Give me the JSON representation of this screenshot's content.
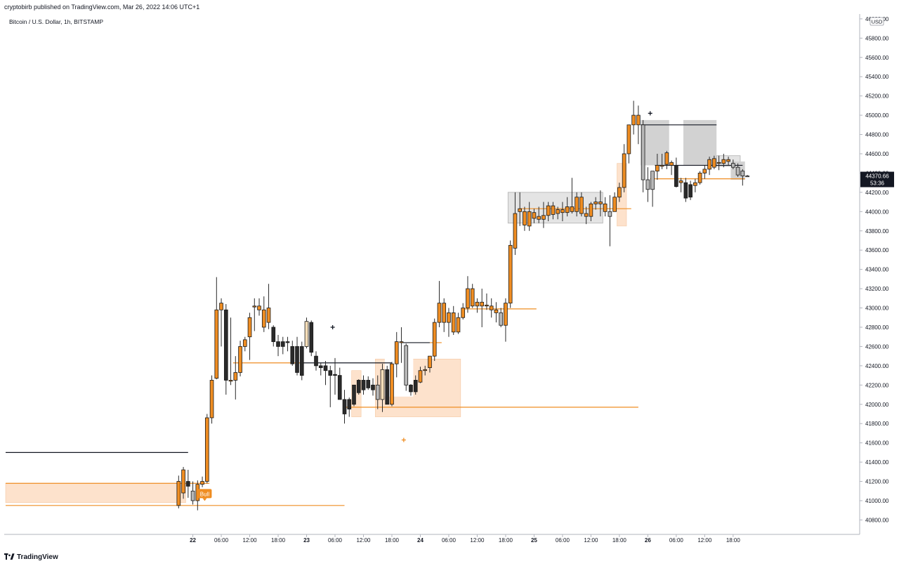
{
  "publish_line": "cryptobirb published on TradingView.com, Mar 26, 2022 14:06 UTC+1",
  "symbol_line": "Bitcoin / U.S. Dollar, 1h, BITSTAMP",
  "footer": {
    "brand": "TradingView",
    "logo_icon": "tradingview-logo-icon"
  },
  "colors": {
    "bull": "#ef8d22",
    "bear": "#2a2a2a",
    "neutral_bull": "#f5deb9",
    "neutral_bear": "#b8b8b8",
    "zone_orange": "#fde2cc",
    "zone_gray": "#d2d2d2",
    "level_orange": "#ef8d22",
    "level_black": "#131722",
    "axis_text": "#131722",
    "price_label_bg": "#131722"
  },
  "chart_data": {
    "type": "candlestick",
    "title": "",
    "xlabel": "",
    "ylabel": "",
    "currency_label": "USD",
    "ylim": [
      40650,
      46050
    ],
    "xlim": [
      -39.8,
      140.7
    ],
    "last_price_label": "44370.66",
    "countdown_label": "53:36",
    "y_ticks": [
      40800,
      41000,
      41200,
      41400,
      41600,
      41800,
      42000,
      42200,
      42400,
      42600,
      42800,
      43000,
      43200,
      43400,
      43600,
      43800,
      44000,
      44200,
      44400,
      44600,
      44800,
      45000,
      45200,
      45400,
      45600,
      45800,
      46000
    ],
    "y_tick_labels": [
      "40800.00",
      "41000.00",
      "41200.00",
      "41400.00",
      "41600.00",
      "41800.00",
      "42000.00",
      "42200.00",
      "42400.00",
      "42600.00",
      "42800.00",
      "43000.00",
      "43200.00",
      "43400.00",
      "43600.00",
      "43800.00",
      "44000.00",
      "44200.00",
      "44400.00",
      "44600.00",
      "44800.00",
      "45000.00",
      "45200.00",
      "45400.00",
      "45600.00",
      "45800.00",
      "46000.00"
    ],
    "x_axis_note": "x = hours since 2022-03-22 00:00",
    "x_ticks": [
      {
        "x": 0,
        "label": "22"
      },
      {
        "x": 6,
        "label": "06:00"
      },
      {
        "x": 12,
        "label": "12:00"
      },
      {
        "x": 18,
        "label": "18:00"
      },
      {
        "x": 24,
        "label": "23"
      },
      {
        "x": 30,
        "label": "06:00"
      },
      {
        "x": 36,
        "label": "12:00"
      },
      {
        "x": 42,
        "label": "18:00"
      },
      {
        "x": 48,
        "label": "24"
      },
      {
        "x": 54,
        "label": "06:00"
      },
      {
        "x": 60,
        "label": "12:00"
      },
      {
        "x": 66,
        "label": "18:00"
      },
      {
        "x": 72,
        "label": "25"
      },
      {
        "x": 78,
        "label": "06:00"
      },
      {
        "x": 84,
        "label": "12:00"
      },
      {
        "x": 90,
        "label": "18:00"
      },
      {
        "x": 96,
        "label": "26"
      },
      {
        "x": 102,
        "label": "06:00"
      },
      {
        "x": 108,
        "label": "12:00"
      },
      {
        "x": 114,
        "label": "18:00"
      }
    ],
    "candles_format": [
      "x",
      "open",
      "high",
      "low",
      "close",
      "style"
    ],
    "candles": [
      [
        -3,
        41200,
        41260,
        40920,
        40950,
        "bull"
      ],
      [
        -2,
        41080,
        41350,
        41020,
        41320,
        "bull"
      ],
      [
        -1,
        41150,
        41320,
        41030,
        41200,
        "bear"
      ],
      [
        0,
        41100,
        41200,
        40960,
        41000,
        "neutral_bear"
      ],
      [
        1,
        41000,
        41210,
        40900,
        41170,
        "bull"
      ],
      [
        2,
        41170,
        41250,
        41140,
        41200,
        "bull"
      ],
      [
        3,
        41200,
        41900,
        41180,
        41860,
        "bull"
      ],
      [
        4,
        41860,
        42300,
        41800,
        42250,
        "bull"
      ],
      [
        5,
        42270,
        43320,
        42260,
        42980,
        "bull"
      ],
      [
        6,
        42980,
        43100,
        42600,
        43050,
        "bull"
      ],
      [
        7,
        42980,
        43040,
        42100,
        42250,
        "bear"
      ],
      [
        8,
        42240,
        42900,
        42200,
        42250,
        "bull"
      ],
      [
        9,
        42250,
        42500,
        42050,
        42330,
        "bull"
      ],
      [
        10,
        42330,
        42660,
        42290,
        42600,
        "bull"
      ],
      [
        11,
        42600,
        42700,
        42550,
        42670,
        "bull"
      ],
      [
        12,
        42900,
        42950,
        42460,
        42700,
        "bull"
      ],
      [
        13,
        43010,
        43100,
        42760,
        43020,
        "bull"
      ],
      [
        14,
        43020,
        43100,
        42920,
        42980,
        "bull"
      ],
      [
        15,
        42980,
        43120,
        42750,
        42800,
        "bull"
      ],
      [
        16,
        43000,
        43250,
        42780,
        42850,
        "bull"
      ],
      [
        17,
        42800,
        42820,
        42600,
        42650,
        "bear"
      ],
      [
        18,
        42650,
        42720,
        42500,
        42600,
        "bear"
      ],
      [
        19,
        42600,
        42700,
        42520,
        42650,
        "bear"
      ],
      [
        20,
        42650,
        42700,
        42550,
        42640,
        "bear"
      ],
      [
        21,
        42600,
        42660,
        42400,
        42420,
        "bear"
      ],
      [
        22,
        42600,
        42700,
        42300,
        42330,
        "bear"
      ],
      [
        23,
        42600,
        42650,
        42250,
        42300,
        "bear"
      ],
      [
        24,
        42600,
        42900,
        42580,
        42860,
        "neutral_bull"
      ],
      [
        25,
        42850,
        42870,
        42500,
        42540,
        "bear"
      ],
      [
        26,
        42500,
        42550,
        42350,
        42400,
        "bear"
      ],
      [
        27,
        42400,
        42430,
        42300,
        42380,
        "bear"
      ],
      [
        28,
        42400,
        42450,
        42200,
        42350,
        "bear"
      ],
      [
        29,
        42350,
        42400,
        41970,
        42300,
        "bear"
      ],
      [
        30,
        42300,
        42480,
        42100,
        42310,
        "bear"
      ],
      [
        31,
        42300,
        42380,
        42050,
        42050,
        "bear"
      ],
      [
        32,
        42050,
        42150,
        41800,
        41900,
        "bear"
      ],
      [
        33,
        42050,
        42070,
        41870,
        41950,
        "bear"
      ],
      [
        34,
        42000,
        42200,
        41980,
        42200,
        "bear"
      ],
      [
        35,
        42250,
        42260,
        42100,
        42120,
        "bear"
      ],
      [
        36,
        42250,
        42300,
        42100,
        42150,
        "bear"
      ],
      [
        37,
        42250,
        42290,
        42150,
        42170,
        "bear"
      ],
      [
        38,
        42150,
        42270,
        42090,
        42200,
        "bear"
      ],
      [
        39,
        42200,
        42300,
        41950,
        42050,
        "neutral_bear"
      ],
      [
        40,
        42050,
        42420,
        41920,
        42360,
        "neutral_bull"
      ],
      [
        41,
        42360,
        42400,
        42000,
        42000,
        "bear"
      ],
      [
        42,
        42000,
        42440,
        41980,
        42420,
        "bull"
      ],
      [
        43,
        42420,
        42750,
        42280,
        42650,
        "bull"
      ],
      [
        44,
        42650,
        42800,
        42430,
        42640,
        "bull"
      ],
      [
        45,
        42610,
        42630,
        42140,
        42200,
        "neutral_bear"
      ],
      [
        46,
        42200,
        42210,
        42090,
        42130,
        "bear"
      ],
      [
        47,
        42130,
        42300,
        42100,
        42250,
        "bear"
      ],
      [
        48,
        42230,
        42390,
        42220,
        42350,
        "bull"
      ],
      [
        49,
        42350,
        42400,
        42300,
        42360,
        "bull"
      ],
      [
        50,
        42380,
        42500,
        42330,
        42500,
        "bull"
      ],
      [
        51,
        42500,
        42890,
        42450,
        42850,
        "bull"
      ],
      [
        52,
        42850,
        43280,
        42800,
        43050,
        "bull"
      ],
      [
        53,
        43050,
        43100,
        42750,
        42850,
        "bull"
      ],
      [
        54,
        42850,
        43000,
        42700,
        42950,
        "bull"
      ],
      [
        55,
        42950,
        43020,
        42720,
        42750,
        "bull"
      ],
      [
        56,
        42750,
        42950,
        42730,
        42900,
        "bull"
      ],
      [
        57,
        42900,
        43050,
        42880,
        43000,
        "bull"
      ],
      [
        58,
        43000,
        43330,
        42950,
        43200,
        "bull"
      ],
      [
        59,
        43200,
        43250,
        43000,
        43020,
        "bull"
      ],
      [
        60,
        43020,
        43100,
        42950,
        43060,
        "bull"
      ],
      [
        61,
        43060,
        43200,
        42800,
        43020,
        "bull"
      ],
      [
        62,
        43020,
        43150,
        42980,
        43030,
        "bull"
      ],
      [
        63,
        43020,
        43100,
        42900,
        42980,
        "bull"
      ],
      [
        64,
        42980,
        43060,
        42850,
        42950,
        "bull"
      ],
      [
        65,
        42950,
        43000,
        42800,
        42820,
        "neutral_bear"
      ],
      [
        66,
        42820,
        43100,
        42650,
        43050,
        "bull"
      ],
      [
        67,
        43050,
        43700,
        43000,
        43650,
        "bull"
      ],
      [
        68,
        43620,
        44200,
        43550,
        43980,
        "bull"
      ],
      [
        69,
        44000,
        44200,
        43850,
        44030,
        "bull"
      ],
      [
        70,
        44000,
        44050,
        43800,
        43860,
        "bull"
      ],
      [
        71,
        43850,
        44100,
        43800,
        44000,
        "bull"
      ],
      [
        72,
        43930,
        44030,
        43880,
        43990,
        "bull"
      ],
      [
        73,
        43950,
        44050,
        43880,
        43920,
        "bull"
      ],
      [
        74,
        43920,
        44100,
        43830,
        43960,
        "bull"
      ],
      [
        75,
        43960,
        44100,
        43900,
        44060,
        "bull"
      ],
      [
        76,
        44060,
        44100,
        43920,
        43970,
        "bull"
      ],
      [
        77,
        43980,
        44050,
        43920,
        44020,
        "bull"
      ],
      [
        78,
        44020,
        44100,
        43900,
        43990,
        "bull"
      ],
      [
        79,
        43990,
        44150,
        43950,
        44050,
        "bull"
      ],
      [
        80,
        44050,
        44350,
        43980,
        44000,
        "bull"
      ],
      [
        81,
        44000,
        44200,
        43950,
        44150,
        "bull"
      ],
      [
        82,
        44150,
        44200,
        43950,
        43980,
        "bull"
      ],
      [
        83,
        43980,
        44050,
        43870,
        43950,
        "bull"
      ],
      [
        84,
        43950,
        44100,
        43900,
        44080,
        "bull"
      ],
      [
        85,
        44080,
        44150,
        44020,
        44100,
        "bull"
      ],
      [
        86,
        44100,
        44220,
        43950,
        44080,
        "bull"
      ],
      [
        87,
        44080,
        44150,
        43950,
        44000,
        "bull"
      ],
      [
        88,
        44000,
        44170,
        43640,
        43950,
        "neutral_bear"
      ],
      [
        89,
        44000,
        44200,
        44000,
        44150,
        "bull"
      ],
      [
        90,
        44150,
        44300,
        44100,
        44250,
        "bull"
      ],
      [
        91,
        44250,
        44700,
        44200,
        44600,
        "bull"
      ],
      [
        92,
        44600,
        44900,
        44500,
        44900,
        "bull"
      ],
      [
        93,
        44900,
        45150,
        44800,
        45000,
        "bull"
      ],
      [
        94,
        45000,
        45100,
        44700,
        44900,
        "bull"
      ],
      [
        95,
        44900,
        44950,
        44200,
        44330,
        "neutral_bear"
      ],
      [
        96,
        44330,
        44460,
        44100,
        44230,
        "neutral_bear"
      ],
      [
        97,
        44230,
        44420,
        44050,
        44420,
        "neutral_bear"
      ],
      [
        98,
        44420,
        44600,
        44330,
        44480,
        "bull"
      ],
      [
        99,
        44480,
        44600,
        44440,
        44470,
        "bull"
      ],
      [
        100,
        44490,
        44630,
        44440,
        44610,
        "bull"
      ],
      [
        101,
        44510,
        44530,
        44380,
        44480,
        "bull"
      ],
      [
        102,
        44480,
        44560,
        44250,
        44260,
        "bear"
      ],
      [
        103,
        44320,
        44350,
        44200,
        44300,
        "bull"
      ],
      [
        104,
        44300,
        44350,
        44100,
        44140,
        "bear"
      ],
      [
        105,
        44280,
        44320,
        44120,
        44150,
        "bear"
      ],
      [
        106,
        44270,
        44340,
        44200,
        44300,
        "bull"
      ],
      [
        107,
        44300,
        44420,
        44280,
        44400,
        "bull"
      ],
      [
        108,
        44400,
        44480,
        44340,
        44440,
        "bull"
      ],
      [
        109,
        44440,
        44570,
        44380,
        44540,
        "bull"
      ],
      [
        110,
        44460,
        44580,
        44440,
        44550,
        "bull"
      ],
      [
        111,
        44510,
        44580,
        44430,
        44500,
        "bull"
      ],
      [
        112,
        44500,
        44600,
        44460,
        44540,
        "bull"
      ],
      [
        113,
        44540,
        44570,
        44480,
        44520,
        "bull"
      ],
      [
        114,
        44500,
        44540,
        44440,
        44460,
        "neutral_bear"
      ],
      [
        115,
        44460,
        44500,
        44360,
        44380,
        "neutral_bear"
      ],
      [
        116,
        44420,
        44440,
        44270,
        44370,
        "neutral_bear"
      ],
      [
        117,
        44370,
        44380,
        44360,
        44370,
        "neutral_bear"
      ]
    ],
    "zones": [
      {
        "x0": -39.5,
        "x1": -1.5,
        "y0": 40980,
        "y1": 41180,
        "kind": "orange"
      },
      {
        "x0": 33.5,
        "x1": 35.5,
        "y0": 41870,
        "y1": 42350,
        "kind": "orange"
      },
      {
        "x0": 38.5,
        "x1": 56.5,
        "y0": 41870,
        "y1": 42470,
        "kind": "orange"
      },
      {
        "x0": 89.5,
        "x1": 91.5,
        "y0": 43850,
        "y1": 44500,
        "kind": "orange"
      },
      {
        "x0": 40.5,
        "x1": 46.5,
        "y0": 42080,
        "y1": 42480,
        "kind": "white"
      },
      {
        "x0": 66.5,
        "x1": 86.5,
        "y0": 43880,
        "y1": 44200,
        "kind": "gray_light"
      },
      {
        "x0": 94.5,
        "x1": 100.5,
        "y0": 44480,
        "y1": 44950,
        "kind": "gray"
      },
      {
        "x0": 103.5,
        "x1": 110.5,
        "y0": 44480,
        "y1": 44950,
        "kind": "gray"
      },
      {
        "x0": 110.5,
        "x1": 115.5,
        "y0": 44470,
        "y1": 44580,
        "kind": "gray_light"
      },
      {
        "x0": 113.5,
        "x1": 116.5,
        "y0": 44330,
        "y1": 44520,
        "kind": "gray"
      }
    ],
    "levels": [
      {
        "x0": -39.5,
        "x1": 32,
        "y": 40950,
        "kind": "orange"
      },
      {
        "x0": -39.5,
        "x1": 3.5,
        "y": 41180,
        "kind": "orange"
      },
      {
        "x0": 8.5,
        "x1": 23.5,
        "y": 42430,
        "kind": "orange"
      },
      {
        "x0": 32,
        "x1": 94,
        "y": 41970,
        "kind": "orange"
      },
      {
        "x0": 50,
        "x1": 52.5,
        "y": 42640,
        "kind": "orange"
      },
      {
        "x0": 57,
        "x1": 72.5,
        "y": 42990,
        "kind": "orange"
      },
      {
        "x0": 69,
        "x1": 92.5,
        "y": 44030,
        "kind": "orange"
      },
      {
        "x0": 96.5,
        "x1": 116.5,
        "y": 44340,
        "kind": "orange"
      },
      {
        "x0": 23,
        "x1": 42,
        "y": 42430,
        "kind": "black"
      },
      {
        "x0": 44,
        "x1": 50,
        "y": 42640,
        "kind": "black"
      },
      {
        "x0": 94.5,
        "x1": 110.5,
        "y": 44900,
        "kind": "black"
      },
      {
        "x0": 97.5,
        "x1": 116,
        "y": 44480,
        "kind": "black"
      },
      {
        "x0": -39.5,
        "x1": -1,
        "y": 41500,
        "kind": "black"
      }
    ],
    "markers": [
      {
        "x": 29.5,
        "y": 42800,
        "kind": "cross_black"
      },
      {
        "x": 44.5,
        "y": 41630,
        "kind": "cross_orange"
      },
      {
        "x": 96.5,
        "y": 45020,
        "kind": "cross_black"
      }
    ],
    "bull_label": {
      "x": 2.5,
      "y": 41070,
      "text": "Bull"
    }
  }
}
